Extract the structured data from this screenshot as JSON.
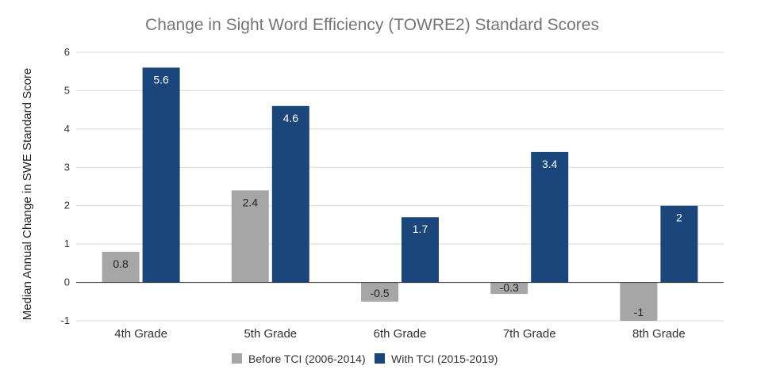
{
  "chart_data": {
    "type": "bar",
    "title": "Change in Sight Word Efficiency (TOWRE2) Standard Scores",
    "xlabel": "",
    "ylabel": "Median Annual Change in SWE Standard Score",
    "ylim": [
      -1,
      6
    ],
    "yticks": [
      "-1",
      "0",
      "1",
      "2",
      "3",
      "4",
      "5",
      "6"
    ],
    "categories": [
      "4th Grade",
      "5th Grade",
      "6th Grade",
      "7th Grade",
      "8th Grade"
    ],
    "series": [
      {
        "name": "Before TCI (2006-2014)",
        "values": [
          0.8,
          2.4,
          -0.5,
          -0.3,
          -1
        ],
        "labels": [
          "0.8",
          "2.4",
          "-0.5",
          "-0.3",
          "-1"
        ],
        "color": "#a6a6a6"
      },
      {
        "name": "With TCI (2015-2019)",
        "values": [
          5.6,
          4.6,
          1.7,
          3.4,
          2
        ],
        "labels": [
          "5.6",
          "4.6",
          "1.7",
          "3.4",
          "2"
        ],
        "color": "#1a467c"
      }
    ],
    "grid": true,
    "legend": "bottom"
  }
}
